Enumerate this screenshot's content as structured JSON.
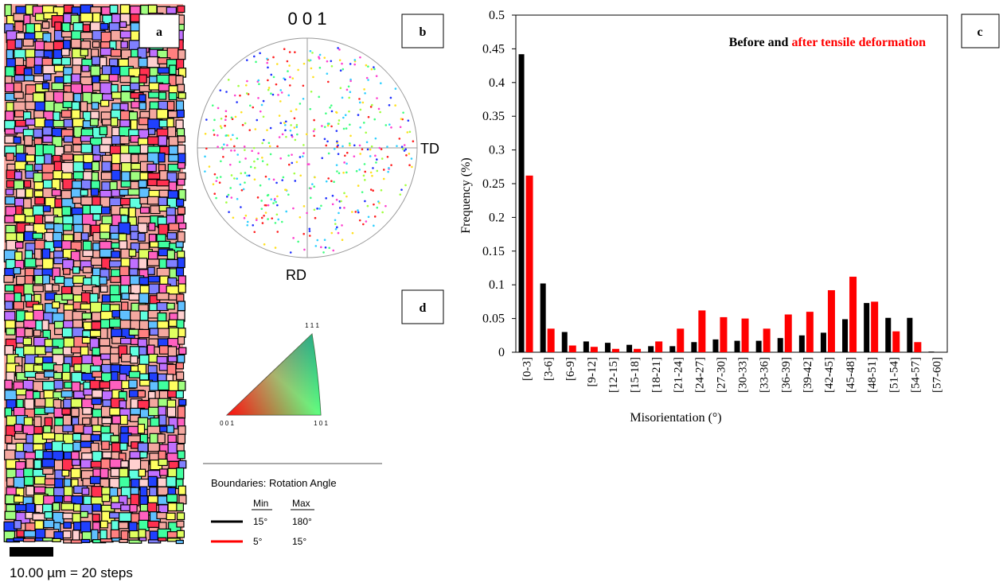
{
  "panel_labels": [
    "a",
    "b",
    "c",
    "d"
  ],
  "pole_figure": {
    "title": "0 0 1",
    "x_label": "TD",
    "y_label": "RD"
  },
  "ipf_key": {
    "corners": [
      "0 0 1",
      "1 0 1",
      "1 1 1"
    ]
  },
  "boundaries": {
    "title": "Boundaries: Rotation Angle",
    "headers": [
      "Min",
      "Max"
    ],
    "rows": [
      [
        "15°",
        "180°"
      ],
      [
        "5°",
        "15°"
      ]
    ]
  },
  "scale_bar": "10.00 µm = 20 steps",
  "chart_data": {
    "type": "bar",
    "x_label": "Misorientation (°)",
    "y_label": "Frequency (%)",
    "categories": [
      "[0-3]",
      "[3-6]",
      "[6-9]",
      "[9-12]",
      "[12-15]",
      "[15-18]",
      "[18-21]",
      "[21-24]",
      "[24-27]",
      "[27-30]",
      "[30-33]",
      "[33-36]",
      "[36-39]",
      "[39-42]",
      "[42-45]",
      "[45-48]",
      "[48-51]",
      "[51-54]",
      "[54-57]",
      "[57-60]"
    ],
    "series": [
      {
        "name": "Before and",
        "color": "#000000",
        "values": [
          0.442,
          0.102,
          0.03,
          0.016,
          0.014,
          0.011,
          0.009,
          0.009,
          0.015,
          0.019,
          0.017,
          0.017,
          0.021,
          0.025,
          0.029,
          0.049,
          0.073,
          0.051,
          0.051,
          0.001
        ]
      },
      {
        "name": "after tensile deformation",
        "color": "#ff0000",
        "values": [
          0.262,
          0.035,
          0.01,
          0.008,
          0.005,
          0.005,
          0.016,
          0.035,
          0.062,
          0.052,
          0.05,
          0.035,
          0.056,
          0.06,
          0.092,
          0.112,
          0.075,
          0.031,
          0.015,
          0
        ]
      }
    ],
    "ylim": [
      0,
      0.5
    ],
    "yticks": [
      0,
      0.05,
      0.1,
      0.15,
      0.2,
      0.25,
      0.3,
      0.35,
      0.4,
      0.45,
      0.5
    ]
  }
}
